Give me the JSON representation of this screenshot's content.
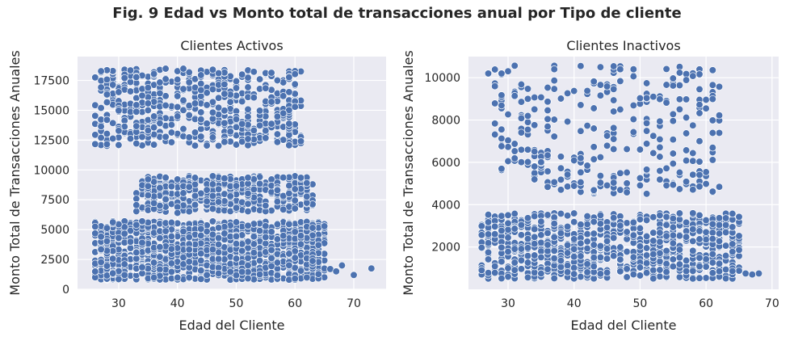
{
  "figure": {
    "title": "Fig. 9 Edad vs Monto total de transacciones anual por Tipo de cliente"
  },
  "chart_data": [
    {
      "type": "scatter",
      "title": "Clientes Activos",
      "xlabel": "Edad del Cliente",
      "ylabel": "Monto Total de Transacciones Anuales",
      "xlim": [
        23,
        75.5
      ],
      "ylim": [
        0,
        19500
      ],
      "xticks": [
        30,
        40,
        50,
        60,
        70
      ],
      "yticks": [
        0,
        2500,
        5000,
        7500,
        10000,
        12500,
        15000,
        17500
      ],
      "grid": true,
      "color": "#4c72b0",
      "background": "#eaeaf2",
      "clusters": [
        {
          "x_range": [
            26,
            65
          ],
          "y_range": [
            800,
            5700
          ],
          "approx_points": 1400
        },
        {
          "x_range": [
            33,
            63
          ],
          "y_range": [
            6500,
            9500
          ],
          "approx_points": 420
        },
        {
          "x_range": [
            26,
            61
          ],
          "y_range": [
            12000,
            18500
          ],
          "approx_points": 560
        }
      ],
      "points": [
        [
          68,
          2000
        ],
        [
          70,
          1200
        ],
        [
          73,
          1750
        ],
        [
          66,
          1700
        ],
        [
          67,
          1500
        ],
        [
          40,
          6400
        ],
        [
          46,
          18400
        ],
        [
          51,
          18000
        ],
        [
          31,
          17700
        ],
        [
          57,
          17500
        ]
      ]
    },
    {
      "type": "scatter",
      "title": "Clientes Inactivos",
      "xlabel": "Edad del Cliente",
      "ylabel": "Monto Total de Transacciones Anuales",
      "xlim": [
        24,
        71
      ],
      "ylim": [
        0,
        11000
      ],
      "xticks": [
        30,
        40,
        50,
        60,
        70
      ],
      "yticks": [
        2000,
        4000,
        6000,
        8000,
        10000
      ],
      "grid": true,
      "color": "#4c72b0",
      "background": "#eaeaf2",
      "clusters": [
        {
          "x_range": [
            26,
            65
          ],
          "y_range": [
            500,
            3600
          ],
          "approx_points": 900
        },
        {
          "x_range": [
            33,
            62
          ],
          "y_range": [
            4500,
            5600
          ],
          "approx_points": 80
        },
        {
          "x_range": [
            28,
            62
          ],
          "y_range": [
            5600,
            10600
          ],
          "approx_points": 220
        }
      ],
      "points": [
        [
          26,
          1000
        ],
        [
          26,
          900
        ],
        [
          27,
          2600
        ],
        [
          27,
          10200
        ],
        [
          29,
          5700
        ],
        [
          29,
          10200
        ],
        [
          44,
          10500
        ],
        [
          47,
          10400
        ],
        [
          66,
          750
        ],
        [
          68,
          750
        ],
        [
          67,
          700
        ]
      ]
    }
  ]
}
